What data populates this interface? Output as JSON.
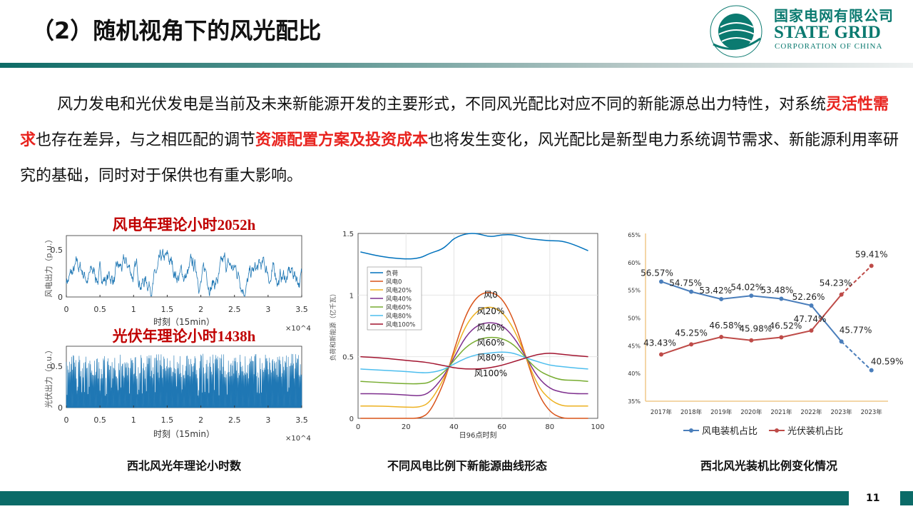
{
  "header": {
    "title": "（2）随机视角下的风光配比",
    "logo": {
      "cn": "国家电网有限公司",
      "en": "STATE GRID",
      "sub": "CORPORATION OF CHINA",
      "ring": "国家电网公司 STATE GRID CORPORATION OF CHINA"
    }
  },
  "paragraph": [
    {
      "text": "风力发电和光伏发电是当前及未来新能源开发的主要形式，不同风光配比对应不同的新能源总出力特性，对系统",
      "highlight": false
    },
    {
      "text": "灵活性需求",
      "highlight": true
    },
    {
      "text": "也存在差异，与之相匹配的调节",
      "highlight": false
    },
    {
      "text": "资源配置方案及投资成本",
      "highlight": true
    },
    {
      "text": "也将发生变化，风光配比是新型电力系统调节需求、新能源利用率研究的基础，同时对于保供也有重大影响。",
      "highlight": false
    }
  ],
  "colors": {
    "accent": "#0b6b68",
    "highlight": "#e8231e",
    "chart_title": "#c00000"
  },
  "captions": [
    "西北风光年理论小时数",
    "不同风电比例下新能源曲线形态",
    "西北风光装机比例变化情况"
  ],
  "footer": {
    "page": "11"
  },
  "chart_data": [
    {
      "type": "line",
      "title": "风电年理论小时2052h",
      "xlabel": "时刻（15min）",
      "ylabel": "风电出力（p.u.）",
      "x_multiplier": "×10^4",
      "xlim": [
        0,
        3.5
      ],
      "ylim": [
        0,
        0.65
      ],
      "xticks": [
        "0",
        "0.5",
        "1",
        "1.5",
        "2",
        "2.5",
        "3",
        "3.5"
      ],
      "yticks": [
        "0",
        "0.5"
      ],
      "color": "#1f77b4"
    },
    {
      "type": "area",
      "title": "光伏年理论小时1438h",
      "xlabel": "时刻（15min）",
      "ylabel": "光伏出力（p.u.）",
      "x_multiplier": "×10^4",
      "xlim": [
        0,
        3.5
      ],
      "ylim": [
        0,
        0.72
      ],
      "xticks": [
        "0",
        "0.5",
        "1",
        "1.5",
        "2",
        "2.5",
        "3",
        "3.5"
      ],
      "yticks": [
        "0",
        "0.5"
      ],
      "color": "#1f77b4"
    },
    {
      "type": "line",
      "xlabel": "日96点时刻",
      "ylabel": "负荷和新能源（亿千瓦）",
      "xlim": [
        0,
        100
      ],
      "ylim": [
        0,
        1.5
      ],
      "xticks": [
        "0",
        "20",
        "40",
        "60",
        "80",
        "100"
      ],
      "yticks": [
        "0",
        "0.5",
        "1",
        "1.5"
      ],
      "grid": true,
      "legend": "upper-left",
      "x": [
        1,
        10,
        20,
        26,
        30,
        35,
        38,
        40,
        45,
        50,
        55,
        60,
        65,
        70,
        75,
        80,
        85,
        90,
        96
      ],
      "series": [
        {
          "name": "负荷",
          "color": "#0072BD",
          "values": [
            1.35,
            1.31,
            1.29,
            1.3,
            1.34,
            1.37,
            1.42,
            1.46,
            1.5,
            1.5,
            1.47,
            1.49,
            1.49,
            1.46,
            1.45,
            1.44,
            1.44,
            1.41,
            1.36
          ]
        },
        {
          "name": "风电0",
          "label": "风0",
          "color": "#D95319",
          "values": [
            0,
            0,
            0,
            0,
            0.05,
            0.25,
            0.42,
            0.55,
            0.85,
            1.0,
            1.03,
            0.98,
            0.8,
            0.5,
            0.2,
            0.05,
            0,
            0,
            0
          ]
        },
        {
          "name": "风电20%",
          "label": "风20%",
          "color": "#EDB120",
          "values": [
            0.1,
            0.1,
            0.09,
            0.09,
            0.13,
            0.29,
            0.42,
            0.52,
            0.76,
            0.88,
            0.91,
            0.87,
            0.73,
            0.5,
            0.26,
            0.15,
            0.1,
            0.1,
            0.1
          ]
        },
        {
          "name": "风电40%",
          "label": "风40%",
          "color": "#7E2F8E",
          "values": [
            0.2,
            0.2,
            0.19,
            0.18,
            0.21,
            0.32,
            0.42,
            0.49,
            0.67,
            0.76,
            0.78,
            0.76,
            0.66,
            0.5,
            0.33,
            0.24,
            0.21,
            0.2,
            0.2
          ]
        },
        {
          "name": "风电60%",
          "label": "风60%",
          "color": "#77AC30",
          "values": [
            0.3,
            0.29,
            0.28,
            0.28,
            0.29,
            0.36,
            0.42,
            0.47,
            0.58,
            0.64,
            0.66,
            0.65,
            0.6,
            0.49,
            0.39,
            0.34,
            0.31,
            0.31,
            0.3
          ]
        },
        {
          "name": "风电80%",
          "label": "风80%",
          "color": "#4DBEEE",
          "values": [
            0.4,
            0.39,
            0.38,
            0.37,
            0.37,
            0.39,
            0.42,
            0.44,
            0.49,
            0.52,
            0.53,
            0.54,
            0.53,
            0.49,
            0.46,
            0.43,
            0.42,
            0.41,
            0.4
          ]
        },
        {
          "name": "风电100%",
          "label": "风100%",
          "color": "#A2142F",
          "values": [
            0.5,
            0.49,
            0.47,
            0.46,
            0.45,
            0.43,
            0.42,
            0.41,
            0.4,
            0.4,
            0.41,
            0.43,
            0.46,
            0.49,
            0.52,
            0.53,
            0.52,
            0.51,
            0.5
          ]
        }
      ]
    },
    {
      "type": "line",
      "categories": [
        "2017年",
        "2018年",
        "2019年",
        "2020年",
        "2021年",
        "2022年",
        "2023年",
        "2023年"
      ],
      "ylim": [
        35,
        65
      ],
      "yticks": [
        "35%",
        "40%",
        "45%",
        "50%",
        "55%",
        "60%",
        "65%"
      ],
      "legend": "bottom",
      "projected_from_index": 6,
      "series": [
        {
          "name": "风电装机占比",
          "color": "#4a7ebb",
          "values": [
            56.57,
            54.75,
            53.42,
            54.02,
            53.48,
            52.26,
            45.77,
            40.59
          ],
          "labels": [
            "56.57%",
            "54.75%",
            "53.42%",
            "54.02%",
            "53.48%",
            "52.26%",
            "45.77%",
            "40.59%"
          ]
        },
        {
          "name": "光伏装机占比",
          "color": "#be4b48",
          "values": [
            43.43,
            45.25,
            46.58,
            45.98,
            46.52,
            47.74,
            54.23,
            59.41
          ],
          "labels": [
            "43.43%",
            "45.25%",
            "46.58%",
            "45.98%",
            "46.52%",
            "47.74%",
            "54.23%",
            "59.41%"
          ]
        }
      ]
    }
  ]
}
